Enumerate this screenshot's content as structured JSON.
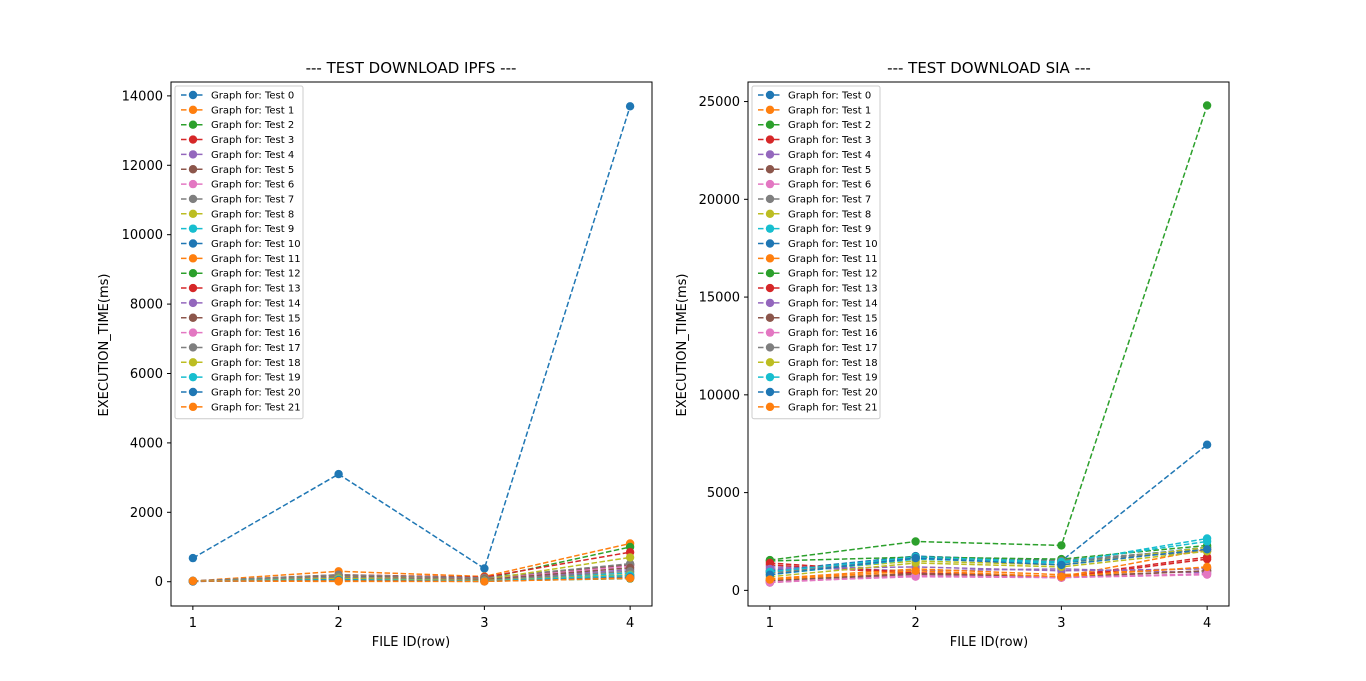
{
  "colors": [
    "#1f77b4",
    "#ff7f0e",
    "#2ca02c",
    "#d62728",
    "#9467bd",
    "#8c564b",
    "#e377c2",
    "#7f7f7f",
    "#bcbd22",
    "#17becf"
  ],
  "chart_data": [
    {
      "type": "line",
      "title": "--- TEST DOWNLOAD IPFS ---",
      "xlabel": "FILE ID(row)",
      "ylabel": "EXECUTION_TIME(ms)",
      "x": [
        1,
        2,
        3,
        4
      ],
      "xlim": [
        0.85,
        4.15
      ],
      "ylim": [
        -700,
        14400
      ],
      "yticks": [
        0,
        2000,
        4000,
        6000,
        8000,
        10000,
        12000,
        14000
      ],
      "xticks": [
        1,
        2,
        3,
        4
      ],
      "legend_position": "top-left",
      "series": [
        {
          "name": "Graph for: Test 0",
          "values": [
            680,
            3100,
            380,
            13700
          ]
        },
        {
          "name": "Graph for: Test 1",
          "values": [
            20,
            300,
            150,
            1100
          ]
        },
        {
          "name": "Graph for: Test 2",
          "values": [
            20,
            100,
            80,
            1000
          ]
        },
        {
          "name": "Graph for: Test 3",
          "values": [
            10,
            200,
            130,
            850
          ]
        },
        {
          "name": "Graph for: Test 4",
          "values": [
            20,
            150,
            100,
            500
          ]
        },
        {
          "name": "Graph for: Test 5",
          "values": [
            20,
            180,
            90,
            480
          ]
        },
        {
          "name": "Graph for: Test 6",
          "values": [
            10,
            120,
            70,
            450
          ]
        },
        {
          "name": "Graph for: Test 7",
          "values": [
            20,
            200,
            110,
            520
          ]
        },
        {
          "name": "Graph for: Test 8",
          "values": [
            10,
            130,
            60,
            700
          ]
        },
        {
          "name": "Graph for: Test 9",
          "values": [
            20,
            90,
            40,
            250
          ]
        },
        {
          "name": "Graph for: Test 10",
          "values": [
            10,
            80,
            20,
            150
          ]
        },
        {
          "name": "Graph for: Test 11",
          "values": [
            20,
            10,
            10,
            130
          ]
        },
        {
          "name": "Graph for: Test 12",
          "values": [
            10,
            60,
            20,
            90
          ]
        },
        {
          "name": "Graph for: Test 13",
          "values": [
            20,
            70,
            30,
            200
          ]
        },
        {
          "name": "Graph for: Test 14",
          "values": [
            10,
            100,
            50,
            350
          ]
        },
        {
          "name": "Graph for: Test 15",
          "values": [
            20,
            110,
            60,
            400
          ]
        },
        {
          "name": "Graph for: Test 16",
          "values": [
            10,
            50,
            20,
            100
          ]
        },
        {
          "name": "Graph for: Test 17",
          "values": [
            20,
            120,
            40,
            300
          ]
        },
        {
          "name": "Graph for: Test 18",
          "values": [
            10,
            90,
            30,
            200
          ]
        },
        {
          "name": "Graph for: Test 19",
          "values": [
            20,
            60,
            20,
            180
          ]
        },
        {
          "name": "Graph for: Test 20",
          "values": [
            10,
            40,
            10,
            120
          ]
        },
        {
          "name": "Graph for: Test 21",
          "values": [
            20,
            20,
            10,
            100
          ]
        }
      ]
    },
    {
      "type": "line",
      "title": "--- TEST DOWNLOAD SIA ---",
      "xlabel": "FILE ID(row)",
      "ylabel": "EXECUTION_TIME(ms)",
      "x": [
        1,
        2,
        3,
        4
      ],
      "xlim": [
        0.85,
        4.15
      ],
      "ylim": [
        -800,
        26000
      ],
      "yticks": [
        0,
        5000,
        10000,
        15000,
        20000,
        25000
      ],
      "xticks": [
        1,
        2,
        3,
        4
      ],
      "legend_position": "top-left",
      "series": [
        {
          "name": "Graph for: Test 0",
          "values": [
            950,
            1700,
            1400,
            2200
          ]
        },
        {
          "name": "Graph for: Test 1",
          "values": [
            500,
            900,
            700,
            2100
          ]
        },
        {
          "name": "Graph for: Test 2",
          "values": [
            1550,
            2500,
            2300,
            24800
          ]
        },
        {
          "name": "Graph for: Test 3",
          "values": [
            1300,
            850,
            700,
            1700
          ]
        },
        {
          "name": "Graph for: Test 4",
          "values": [
            1200,
            1000,
            1100,
            900
          ]
        },
        {
          "name": "Graph for: Test 5",
          "values": [
            400,
            800,
            650,
            1000
          ]
        },
        {
          "name": "Graph for: Test 6",
          "values": [
            450,
            700,
            650,
            800
          ]
        },
        {
          "name": "Graph for: Test 7",
          "values": [
            1000,
            1650,
            1550,
            2100
          ]
        },
        {
          "name": "Graph for: Test 8",
          "values": [
            900,
            1500,
            1300,
            2200
          ]
        },
        {
          "name": "Graph for: Test 9",
          "values": [
            800,
            1600,
            1400,
            2650
          ]
        },
        {
          "name": "Graph for: Test 10",
          "values": [
            1000,
            1750,
            1500,
            7450
          ]
        },
        {
          "name": "Graph for: Test 11",
          "values": [
            600,
            1100,
            800,
            1150
          ]
        },
        {
          "name": "Graph for: Test 12",
          "values": [
            1500,
            1700,
            1600,
            2300
          ]
        },
        {
          "name": "Graph for: Test 13",
          "values": [
            1400,
            900,
            650,
            1600
          ]
        },
        {
          "name": "Graph for: Test 14",
          "values": [
            1100,
            1200,
            1000,
            1100
          ]
        },
        {
          "name": "Graph for: Test 15",
          "values": [
            500,
            850,
            700,
            1000
          ]
        },
        {
          "name": "Graph for: Test 16",
          "values": [
            400,
            750,
            650,
            850
          ]
        },
        {
          "name": "Graph for: Test 17",
          "values": [
            900,
            1650,
            1500,
            2000
          ]
        },
        {
          "name": "Graph for: Test 18",
          "values": [
            700,
            1400,
            1200,
            2000
          ]
        },
        {
          "name": "Graph for: Test 19",
          "values": [
            950,
            1700,
            1450,
            2500
          ]
        },
        {
          "name": "Graph for: Test 20",
          "values": [
            800,
            1650,
            1300,
            2100
          ]
        },
        {
          "name": "Graph for: Test 21",
          "values": [
            550,
            1000,
            700,
            1200
          ]
        }
      ]
    }
  ]
}
